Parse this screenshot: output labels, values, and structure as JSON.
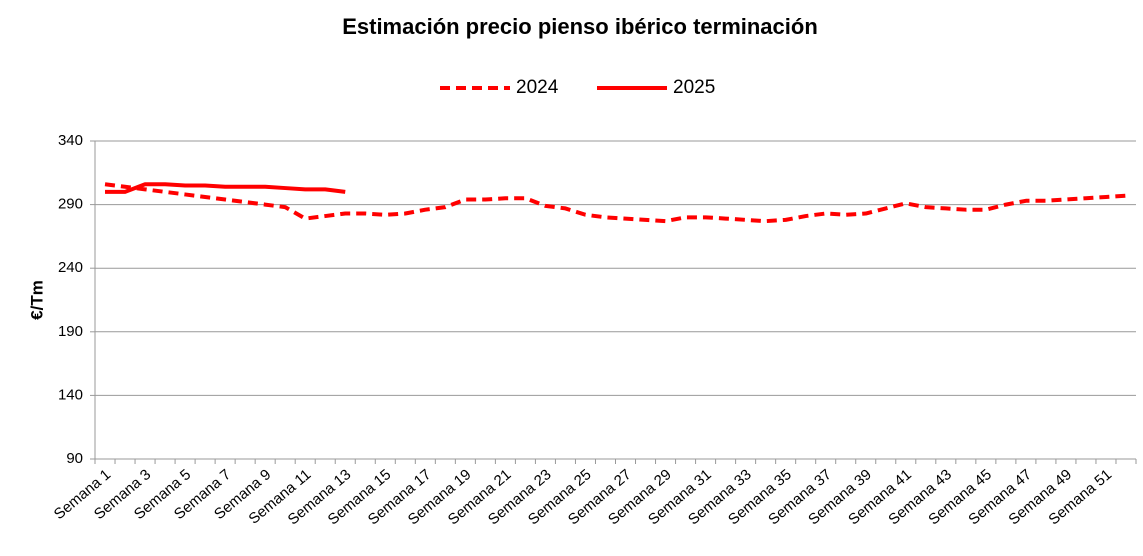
{
  "chart_data": {
    "type": "line",
    "title": "Estimación precio pienso ibérico terminación",
    "y_label": "€/Tm",
    "categories": [
      "Semana 1",
      null,
      "Semana 3",
      null,
      "Semana 5",
      null,
      "Semana 7",
      null,
      "Semana 9",
      null,
      "Semana 11",
      null,
      "Semana 13",
      null,
      "Semana 15",
      null,
      "Semana 17",
      null,
      "Semana 19",
      null,
      "Semana 21",
      null,
      "Semana 23",
      null,
      "Semana 25",
      null,
      "Semana 27",
      null,
      "Semana 29",
      null,
      "Semana 31",
      null,
      "Semana 33",
      null,
      "Semana 35",
      null,
      "Semana 37",
      null,
      "Semana 39",
      null,
      "Semana 41",
      null,
      "Semana 43",
      null,
      "Semana 45",
      null,
      "Semana 47",
      null,
      "Semana 49",
      null,
      "Semana 51",
      null
    ],
    "series": [
      {
        "name": "2024",
        "color": "#ff0000",
        "dashed": true,
        "values": [
          306,
          304,
          302,
          300,
          298,
          296,
          294,
          292,
          290,
          288,
          279,
          281,
          283,
          283,
          282,
          283,
          286,
          288,
          294,
          294,
          295,
          295,
          289,
          287,
          282,
          280,
          279,
          278,
          277,
          280,
          280,
          279,
          278,
          277,
          278,
          281,
          283,
          282,
          283,
          287,
          291,
          288,
          287,
          286,
          286,
          290,
          293,
          293,
          294,
          295,
          296,
          297
        ]
      },
      {
        "name": "2025",
        "color": "#ff0000",
        "dashed": false,
        "values": [
          300,
          300,
          306,
          306,
          305,
          305,
          304,
          304,
          304,
          303,
          302,
          302,
          300,
          null,
          null,
          null,
          null,
          null,
          null,
          null,
          null,
          null,
          null,
          null,
          null,
          null,
          null,
          null,
          null,
          null,
          null,
          null,
          null,
          null,
          null,
          null,
          null,
          null,
          null,
          null,
          null,
          null,
          null,
          null,
          null,
          null,
          null,
          null,
          null,
          null,
          null,
          null
        ]
      }
    ],
    "ylim": [
      90,
      340
    ],
    "yticks": [
      90,
      140,
      190,
      240,
      290,
      340
    ],
    "grid": true
  }
}
